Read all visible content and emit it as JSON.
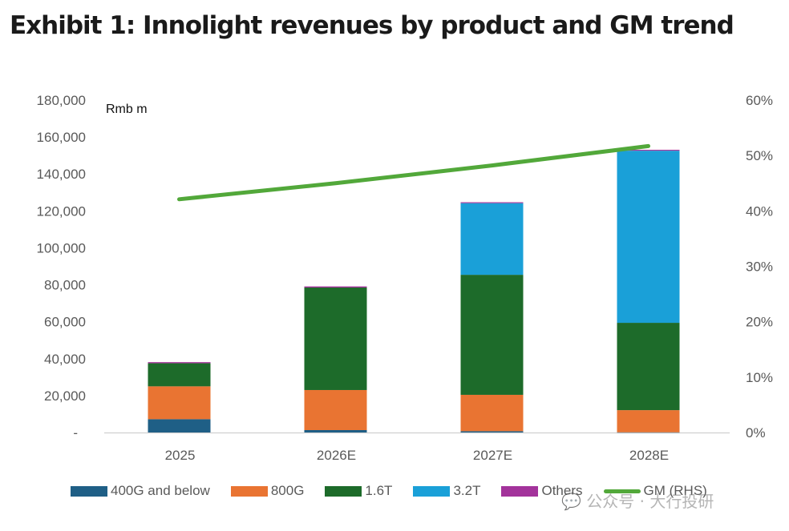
{
  "title": "Exhibit 1: Innolight revenues by product and GM trend",
  "watermark": "公众号 · 大行投研",
  "chart_data": {
    "type": "bar",
    "stacked": true,
    "title": "Exhibit 1: Innolight revenues by product and GM trend",
    "ylabel": "Rmb m",
    "y2label": "GM (RHS)",
    "categories": [
      "2025",
      "2026E",
      "2027E",
      "2028E"
    ],
    "ylim": [
      0,
      180000
    ],
    "yticks": [
      0,
      20000,
      40000,
      60000,
      80000,
      100000,
      120000,
      140000,
      160000,
      180000
    ],
    "ytick_labels": [
      "-",
      "20,000",
      "40,000",
      "60,000",
      "80,000",
      "100,000",
      "120,000",
      "140,000",
      "160,000",
      "180,000"
    ],
    "y2lim": [
      0,
      0.6
    ],
    "y2ticks": [
      0,
      0.1,
      0.2,
      0.3,
      0.4,
      0.5,
      0.6
    ],
    "y2tick_labels": [
      "0%",
      "10%",
      "20%",
      "30%",
      "40%",
      "50%",
      "60%"
    ],
    "grid": false,
    "legend_position": "bottom",
    "series": [
      {
        "name": "400G and below",
        "color": "#1f5f86",
        "values": [
          7200,
          1300,
          700,
          100
        ]
      },
      {
        "name": "800G",
        "color": "#e97432",
        "values": [
          17800,
          21700,
          19700,
          12000
        ]
      },
      {
        "name": "1.6T",
        "color": "#1d6b2a",
        "values": [
          12500,
          55500,
          65000,
          47300
        ]
      },
      {
        "name": "3.2T",
        "color": "#1aa0d8",
        "values": [
          0,
          0,
          38800,
          93200
        ]
      },
      {
        "name": "Others",
        "color": "#a3339b",
        "values": [
          600,
          600,
          500,
          500
        ]
      }
    ],
    "line_series": [
      {
        "name": "GM (RHS)",
        "color": "#52a83a",
        "axis": "right",
        "values": [
          0.421,
          0.45,
          0.482,
          0.517
        ]
      }
    ]
  }
}
